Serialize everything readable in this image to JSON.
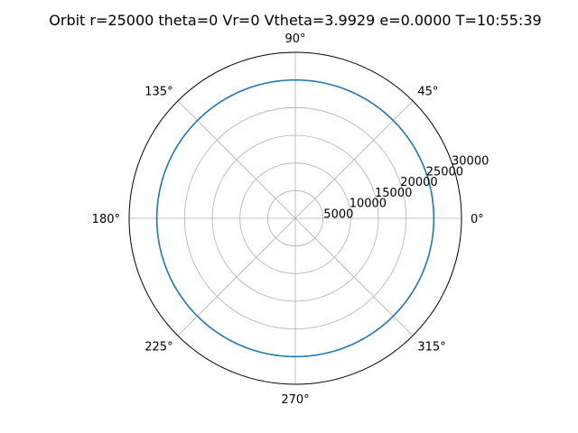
{
  "chart_data": {
    "type": "line",
    "projection": "polar",
    "title": "Orbit r=25000 theta=0 Vr=0 Vtheta=3.9929 e=0.0000 T=10:55:39",
    "rlim": [
      0,
      30000
    ],
    "r_ticks": [
      5000,
      10000,
      15000,
      20000,
      25000,
      30000
    ],
    "r_tick_labels": [
      "5000",
      "10000",
      "15000",
      "20000",
      "25000",
      "30000"
    ],
    "theta_ticks_deg": [
      0,
      45,
      90,
      135,
      180,
      225,
      270,
      315
    ],
    "theta_tick_labels": [
      "0°",
      "45°",
      "90°",
      "135°",
      "180°",
      "225°",
      "270°",
      "315°"
    ],
    "grid": true,
    "series": [
      {
        "color": "#1f77b4",
        "r_constant": 25000,
        "theta_range_deg": [
          0,
          360
        ]
      }
    ]
  },
  "colors": {
    "grid": "#b0b0b0",
    "frame": "#000000",
    "series": "#1f77b4"
  }
}
